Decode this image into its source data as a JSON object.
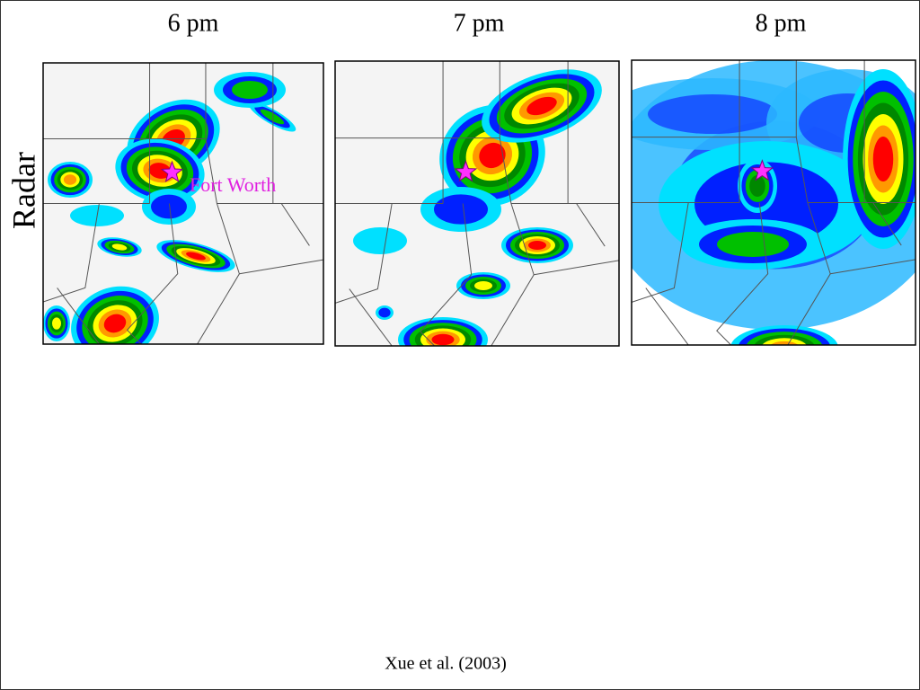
{
  "panels": [
    {
      "time": "6 pm"
    },
    {
      "time": "7 pm"
    },
    {
      "time": "8 pm"
    }
  ],
  "row_label": "Radar",
  "city_label": "Fort Worth",
  "citation": "Xue et al. (2003)"
}
